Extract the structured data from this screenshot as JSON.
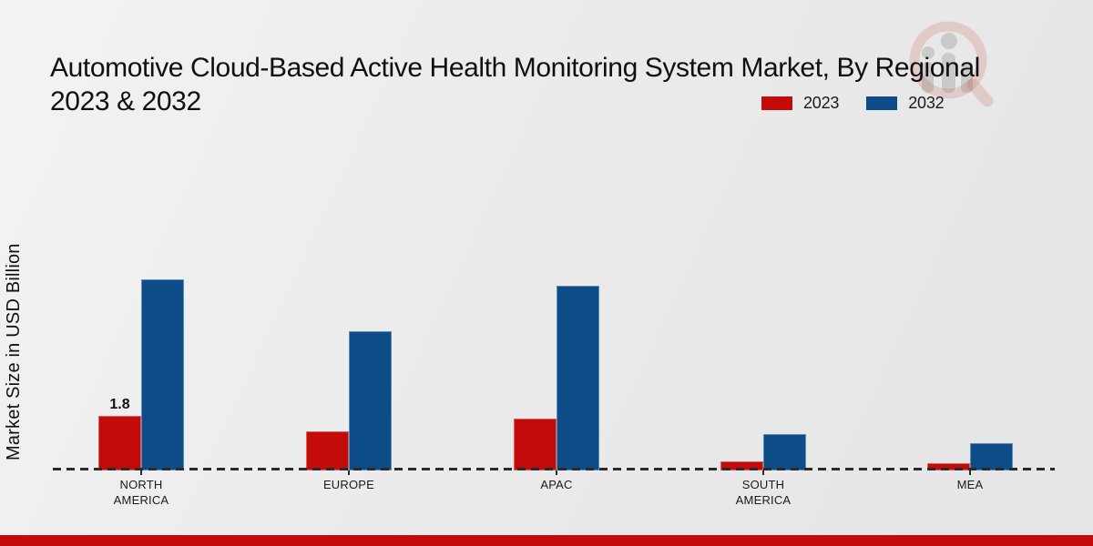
{
  "title": {
    "line1": "Automotive Cloud-Based Active Health Monitoring System Market, By Regional",
    "line2": "2023 & 2032"
  },
  "y_axis_label": "Market Size in USD Billion",
  "legend": [
    {
      "label": "2023",
      "color": "#c40b0b"
    },
    {
      "label": "2032",
      "color": "#0d4c86"
    }
  ],
  "watermark_icon": "magnifier-bar-chart-logo",
  "chart_data": {
    "type": "bar",
    "title": "Automotive Cloud-Based Active Health Monitoring System Market, By Regional 2023 & 2032",
    "ylabel": "Market Size in USD Billion",
    "categories": [
      "NORTH AMERICA",
      "EUROPE",
      "APAC",
      "SOUTH AMERICA",
      "MEA"
    ],
    "series": [
      {
        "name": "2023",
        "color": "#c40b0b",
        "values": [
          1.8,
          1.3,
          1.7,
          0.3,
          0.25
        ]
      },
      {
        "name": "2032",
        "color": "#0d4c86",
        "values": [
          6.3,
          4.6,
          6.1,
          1.2,
          0.9
        ]
      }
    ],
    "ylim": [
      0,
      7
    ],
    "grid": false,
    "legend_position": "top-right",
    "baseline_style": "dashed",
    "data_labels": [
      {
        "series": "2023",
        "category": "NORTH AMERICA",
        "text": "1.8"
      }
    ]
  },
  "footer": {
    "accent_color": "#c40b0b"
  }
}
